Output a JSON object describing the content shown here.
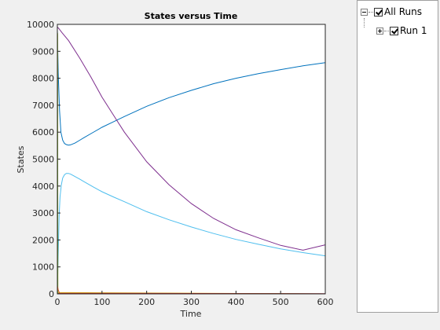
{
  "chart_data": {
    "type": "line",
    "title": "States versus Time",
    "xlabel": "Time",
    "ylabel": "States",
    "xlim": [
      0,
      600
    ],
    "ylim": [
      0,
      10000
    ],
    "xticks": [
      0,
      100,
      200,
      300,
      400,
      500,
      600
    ],
    "yticks": [
      0,
      1000,
      2000,
      3000,
      4000,
      5000,
      6000,
      7000,
      8000,
      9000,
      10000
    ],
    "grid": false,
    "series": [
      {
        "color": "#0072bd",
        "x": [
          0,
          2,
          5,
          8,
          12,
          16,
          20,
          25,
          30,
          40,
          50,
          60,
          80,
          100,
          125,
          150,
          200,
          250,
          300,
          350,
          400,
          450,
          500,
          550,
          600
        ],
        "y": [
          9800,
          8200,
          6800,
          6000,
          5700,
          5580,
          5540,
          5520,
          5530,
          5600,
          5700,
          5800,
          5990,
          6180,
          6380,
          6580,
          6960,
          7280,
          7550,
          7800,
          8000,
          8170,
          8320,
          8460,
          8580
        ]
      },
      {
        "color": "#4dbeee",
        "x": [
          0,
          2,
          4,
          6,
          9,
          12,
          16,
          20,
          25,
          30,
          40,
          50,
          60,
          80,
          100,
          125,
          150,
          200,
          250,
          300,
          350,
          400,
          450,
          500,
          550,
          600
        ],
        "y": [
          50,
          1500,
          2900,
          3600,
          4050,
          4300,
          4420,
          4470,
          4470,
          4440,
          4350,
          4260,
          4160,
          3970,
          3790,
          3600,
          3420,
          3050,
          2750,
          2480,
          2240,
          2020,
          1840,
          1670,
          1530,
          1410
        ]
      },
      {
        "color": "#7e2f8e",
        "x": [
          0,
          3,
          10,
          25,
          50,
          75,
          100,
          125,
          150,
          200,
          250,
          300,
          350,
          400,
          450,
          500,
          550,
          600
        ],
        "y": [
          9900,
          9850,
          9700,
          9400,
          8750,
          8050,
          7300,
          6650,
          6000,
          4900,
          4050,
          3350,
          2800,
          2380,
          2080,
          1800,
          1620,
          1820
        ]
      },
      {
        "color": "#edb120",
        "x": [
          0,
          0.5,
          1,
          600
        ],
        "y": [
          9700,
          9600,
          50,
          0
        ]
      },
      {
        "color": "#77ac30",
        "x": [
          0,
          0.5,
          1,
          600
        ],
        "y": [
          9700,
          9650,
          30,
          0
        ]
      },
      {
        "color": "#d95319",
        "x": [
          0,
          2,
          5,
          165,
          600
        ],
        "y": [
          300,
          150,
          20,
          20,
          0
        ]
      },
      {
        "color": "#a2142f",
        "x": [
          0,
          600
        ],
        "y": [
          5,
          5
        ]
      }
    ]
  },
  "tree": {
    "root_label": "All Runs",
    "child_label": "Run 1"
  }
}
